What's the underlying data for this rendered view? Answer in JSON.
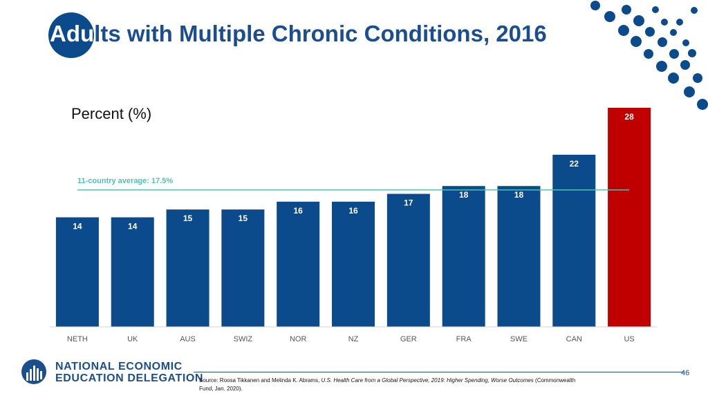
{
  "title_prefix": "Adu",
  "title_rest": "lts with Multiple Chronic Conditions, 2016",
  "chart_data": {
    "type": "bar",
    "title": "Adults with Multiple Chronic Conditions, 2016",
    "ylabel": "Percent (%)",
    "xlabel": "",
    "categories": [
      "NETH",
      "UK",
      "AUS",
      "SWIZ",
      "NOR",
      "NZ",
      "GER",
      "FRA",
      "SWE",
      "CAN",
      "US"
    ],
    "values": [
      14,
      14,
      15,
      15,
      16,
      16,
      17,
      18,
      18,
      22,
      28
    ],
    "ylim": [
      0,
      28
    ],
    "average": {
      "label": "11-country average: 17.5%",
      "value": 17.5
    },
    "colors": {
      "default": "#0b4a8b",
      "highlight": "#c00000",
      "average": "#4fc1b3"
    },
    "highlight_category": "US",
    "grid": false
  },
  "logo": {
    "line1": "NATIONAL ECONOMIC",
    "line2": "EDUCATION DELEGATION"
  },
  "page_number": "46",
  "source": {
    "prefix": "Source: Roosa Tikkanen and Melinda K. Abrams, ",
    "italic": "U.S. Health Care from a Global Perspective, 2019: Higher Spending, Worse Outcomes",
    "suffix": " (Commonwealth Fund, Jan. 2020)."
  }
}
